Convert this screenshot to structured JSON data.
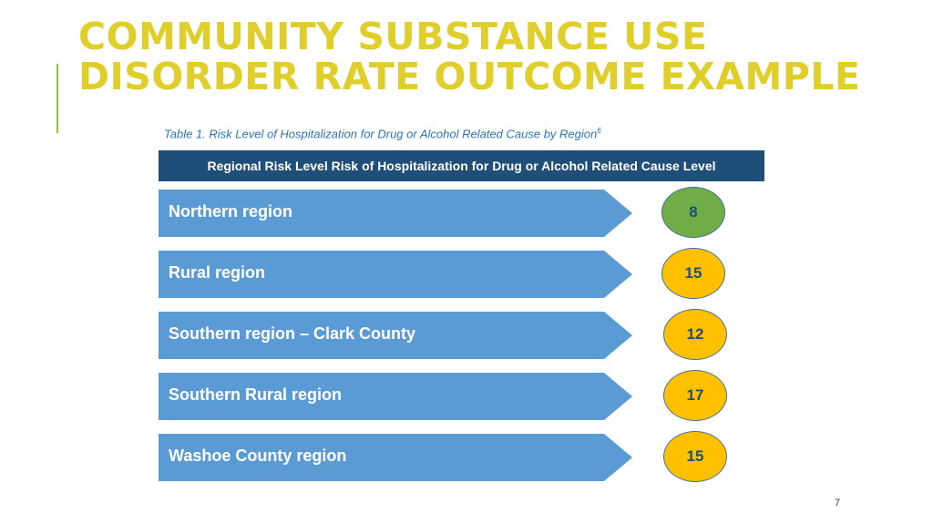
{
  "slide": {
    "title_line1": "COMMUNITY SUBSTANCE USE",
    "title_line2": "DISORDER RATE OUTCOME EXAMPLE",
    "caption": "Table 1. Risk Level of Hospitalization for Drug or Alcohol Related Cause by Region",
    "caption_superscript": "6",
    "header": "Regional Risk Level Risk of Hospitalization for Drug or Alcohol Related Cause Level",
    "page_number": "7"
  },
  "regions": [
    {
      "label": "Northern region",
      "level": "8",
      "color": "#70ad47"
    },
    {
      "label": "Rural region",
      "level": "15",
      "color": "#ffc000"
    },
    {
      "label": "Southern region – Clark County",
      "level": "12",
      "color": "#ffc000"
    },
    {
      "label": "Southern Rural region",
      "level": "17",
      "color": "#ffc000"
    },
    {
      "label": "Washoe County region",
      "level": "15",
      "color": "#ffc000"
    }
  ],
  "colors": {
    "title": "#e0cf2a",
    "accent_line": "#8cc63f",
    "header_bar": "#1f4e79",
    "arrow": "#5b9bd5"
  }
}
